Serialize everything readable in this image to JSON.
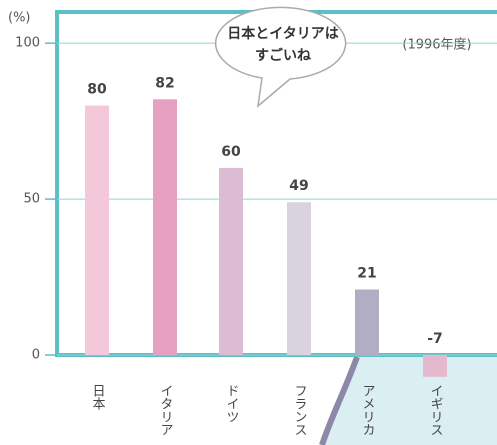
{
  "chart_data": {
    "type": "bar",
    "y_unit": "(%)",
    "note": "(1996年度)",
    "bubble": [
      "日本とイタリアは",
      "すごいね"
    ],
    "categories": [
      "日本",
      "イタリア",
      "ドイツ",
      "フランス",
      "アメリカ",
      "イギリス"
    ],
    "values": [
      80,
      82,
      60,
      49,
      21,
      -7
    ],
    "colors": [
      "#f3c9da",
      "#e6a0c1",
      "#dcbcd2",
      "#d9d3df",
      "#b1adc2",
      "#e4b9cd"
    ],
    "ylim": [
      0,
      110
    ],
    "yticks": [
      0,
      50,
      100
    ],
    "grid": true
  }
}
